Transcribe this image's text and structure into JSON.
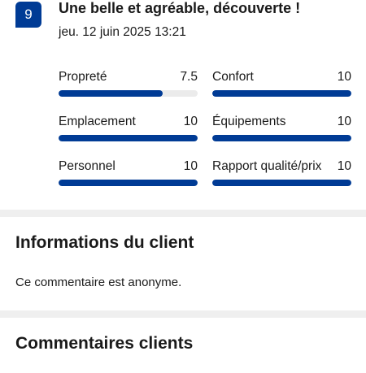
{
  "review": {
    "score": "9",
    "title": "Une belle et agréable, découverte !",
    "date": "jeu. 12 juin 2025 13:21",
    "criteria": [
      {
        "label": "Propreté",
        "value": "7.5",
        "fraction": 0.75
      },
      {
        "label": "Confort",
        "value": "10",
        "fraction": 1.0
      },
      {
        "label": "Emplacement",
        "value": "10",
        "fraction": 1.0
      },
      {
        "label": "Équipements",
        "value": "10",
        "fraction": 1.0
      },
      {
        "label": "Personnel",
        "value": "10",
        "fraction": 1.0
      },
      {
        "label": "Rapport qualité/prix",
        "value": "10",
        "fraction": 1.0
      }
    ]
  },
  "client_info": {
    "heading": "Informations du client",
    "text": "Ce commentaire est anonyme."
  },
  "comments": {
    "heading": "Commentaires clients"
  },
  "colors": {
    "accent": "#003b95",
    "bar_track": "#ebebeb",
    "divider": "#efefef"
  }
}
